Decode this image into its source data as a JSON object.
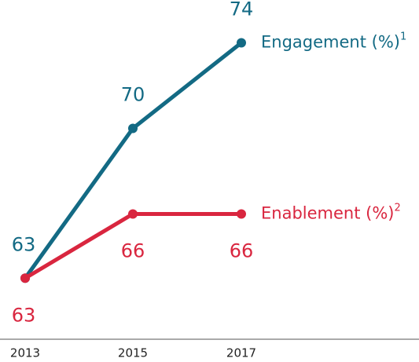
{
  "chart_data": {
    "type": "line",
    "categories": [
      "2013",
      "2015",
      "2017"
    ],
    "series": [
      {
        "name": "Engagement (%)",
        "footnote": "1",
        "color": "#136a84",
        "values": [
          63,
          70,
          74
        ]
      },
      {
        "name": "Enablement (%)",
        "footnote": "2",
        "color": "#d9263f",
        "values": [
          63,
          66,
          66
        ]
      }
    ],
    "ylim": [
      60,
      76
    ]
  }
}
